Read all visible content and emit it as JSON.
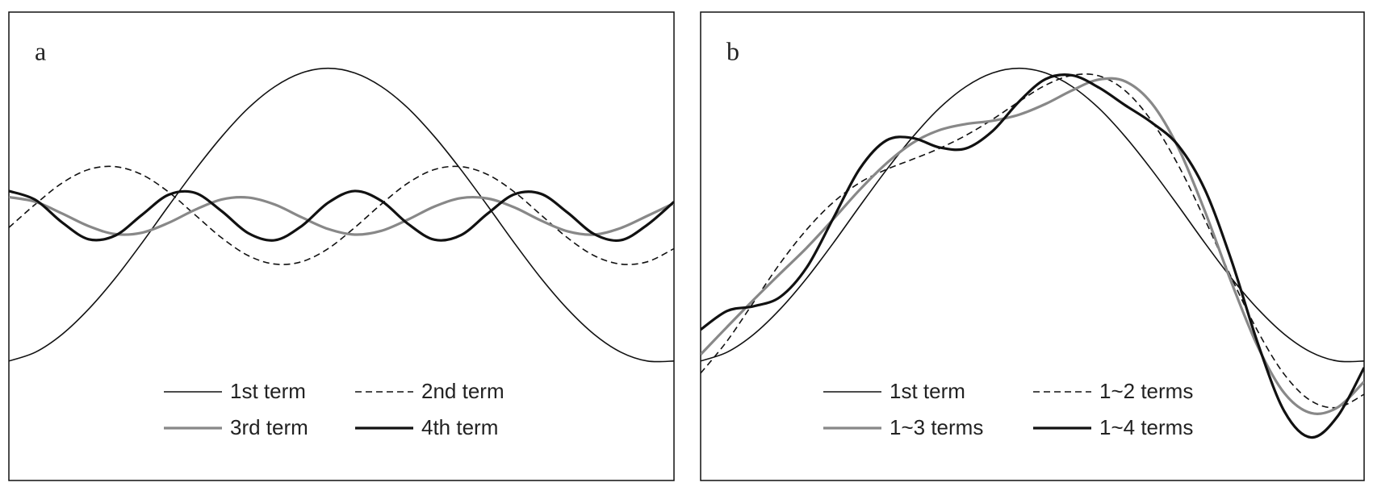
{
  "chart_data": [
    {
      "type": "line",
      "title": "a",
      "x": [
        0,
        0.04,
        0.08,
        0.12,
        0.16,
        0.2,
        0.24,
        0.28,
        0.32,
        0.36,
        0.4,
        0.44,
        0.48,
        0.52,
        0.56,
        0.6,
        0.64,
        0.68,
        0.72,
        0.76,
        0.8,
        0.84,
        0.88,
        0.92,
        0.96,
        1
      ],
      "xlim": [
        0,
        1
      ],
      "ylim": [
        0,
        100
      ],
      "series": [
        {
          "name": "1st term",
          "color": "#111111",
          "linewidth": 1.6,
          "linestyle": "solid",
          "values": [
            25.5,
            27.4,
            31.2,
            36.6,
            43.2,
            50.7,
            58.6,
            66.3,
            73.4,
            79.5,
            84.1,
            87.0,
            88.0,
            87.0,
            84.1,
            79.5,
            73.4,
            66.3,
            58.6,
            50.7,
            43.2,
            36.6,
            31.2,
            27.4,
            25.5,
            25.5
          ]
        },
        {
          "name": "2nd term",
          "color": "#111111",
          "linewidth": 1.6,
          "linestyle": "dashed",
          "values": [
            54.0,
            59.0,
            63.5,
            66.4,
            67.0,
            65.3,
            61.6,
            56.7,
            51.8,
            48.0,
            46.2,
            46.7,
            49.5,
            54.0,
            59.0,
            63.5,
            66.4,
            67.0,
            65.3,
            61.6,
            56.7,
            51.8,
            48.0,
            46.2,
            46.7,
            49.5
          ]
        },
        {
          "name": "3rd term",
          "color": "#888888",
          "linewidth": 3.2,
          "linestyle": "solid",
          "values": [
            60.5,
            59.5,
            57.0,
            54.3,
            52.6,
            52.9,
            55.0,
            57.8,
            60.0,
            60.4,
            58.9,
            56.2,
            53.7,
            52.5,
            53.3,
            55.7,
            58.5,
            60.3,
            60.2,
            58.3,
            55.5,
            53.2,
            52.5,
            53.9,
            56.5,
            59.2
          ]
        },
        {
          "name": "4th term",
          "color": "#111111",
          "linewidth": 3.2,
          "linestyle": "solid",
          "values": [
            61.8,
            59.9,
            55.1,
            51.5,
            52.3,
            56.7,
            61.0,
            61.4,
            57.5,
            52.8,
            51.3,
            54.3,
            59.3,
            61.8,
            59.7,
            54.8,
            51.4,
            52.4,
            57.0,
            61.1,
            61.2,
            57.2,
            52.6,
            51.3,
            54.6,
            59.5
          ]
        }
      ]
    },
    {
      "type": "line",
      "title": "b",
      "x": [
        0,
        0.04,
        0.08,
        0.12,
        0.16,
        0.2,
        0.24,
        0.28,
        0.32,
        0.36,
        0.4,
        0.44,
        0.48,
        0.52,
        0.56,
        0.6,
        0.64,
        0.68,
        0.72,
        0.76,
        0.8,
        0.84,
        0.88,
        0.92,
        0.96,
        1
      ],
      "xlim": [
        0,
        1
      ],
      "ylim": [
        0,
        100
      ],
      "series": [
        {
          "name": "1st term",
          "color": "#111111",
          "linewidth": 1.6,
          "linestyle": "solid",
          "values": [
            25.5,
            27.4,
            31.2,
            36.6,
            43.2,
            50.7,
            58.6,
            66.3,
            73.4,
            79.5,
            84.1,
            87.0,
            88.0,
            87.0,
            84.1,
            79.5,
            73.4,
            66.3,
            58.6,
            50.7,
            43.2,
            36.6,
            31.2,
            27.4,
            25.5,
            25.5
          ]
        },
        {
          "name": "1~2 terms",
          "color": "#111111",
          "linewidth": 1.6,
          "linestyle": "dashed",
          "values": [
            22.9,
            29.8,
            38.1,
            46.4,
            53.6,
            59.4,
            63.6,
            66.4,
            68.6,
            70.9,
            73.7,
            77.1,
            80.9,
            84.4,
            86.5,
            86.4,
            83.2,
            76.7,
            67.3,
            55.7,
            43.3,
            31.8,
            22.6,
            17.0,
            15.6,
            18.4
          ]
        },
        {
          "name": "1~3 terms",
          "color": "#888888",
          "linewidth": 3.2,
          "linestyle": "solid",
          "values": [
            26.9,
            32.8,
            38.6,
            44.2,
            49.7,
            55.8,
            62.1,
            67.7,
            72.1,
            74.8,
            76.1,
            76.8,
            78.1,
            80.4,
            83.3,
            85.6,
            85.2,
            80.5,
            71.0,
            57.5,
            42.3,
            28.5,
            18.6,
            14.4,
            15.6,
            21.1
          ]
        },
        {
          "name": "1~4 terms",
          "color": "#111111",
          "linewidth": 3.2,
          "linestyle": "solid",
          "values": [
            32.2,
            36.2,
            37.2,
            39.2,
            45.5,
            56.0,
            66.6,
            72.6,
            73.1,
            71.1,
            70.9,
            74.6,
            80.9,
            85.7,
            86.5,
            83.9,
            80.1,
            76.4,
            71.5,
            62.1,
            47.0,
            29.2,
            14.7,
            9.2,
            13.7,
            24.1
          ]
        }
      ]
    }
  ]
}
